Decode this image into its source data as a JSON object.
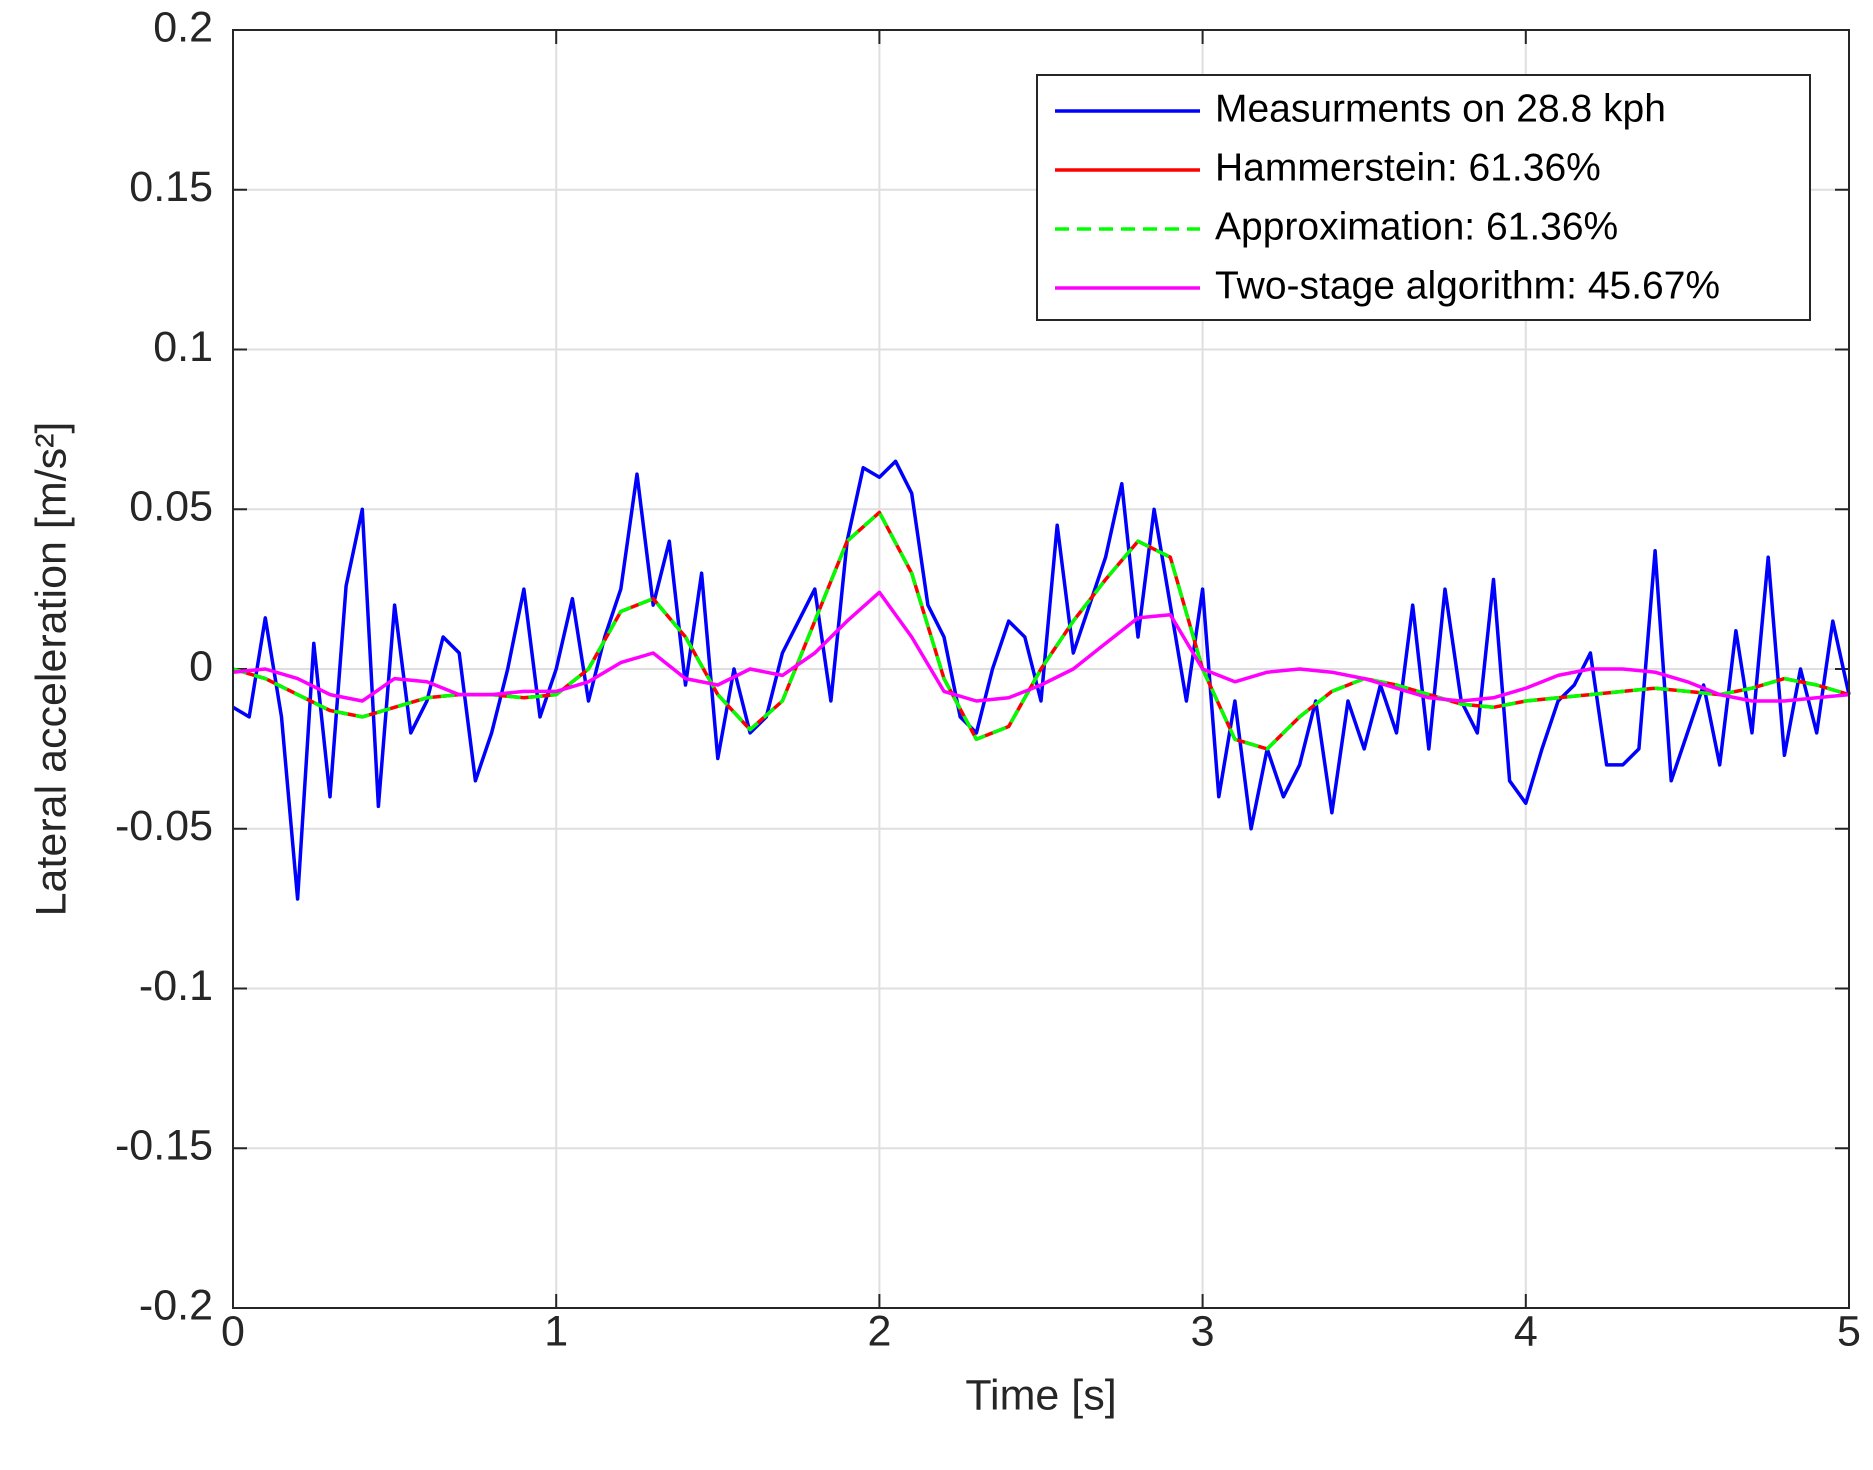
{
  "chart_data": {
    "type": "line",
    "xlabel": "Time [s]",
    "ylabel": "Lateral acceleration [m/s²]",
    "xlim": [
      0,
      5
    ],
    "ylim": [
      -0.2,
      0.2
    ],
    "xticks": [
      0,
      1,
      2,
      3,
      4,
      5
    ],
    "yticks": [
      -0.2,
      -0.15,
      -0.1,
      -0.05,
      0,
      0.05,
      0.1,
      0.15,
      0.2
    ],
    "grid": true,
    "legend": "top-right",
    "series": [
      {
        "name": "Measurments on 28.8 kph",
        "color": "#0000ff",
        "linestyle": "solid",
        "x": [
          0,
          0.05,
          0.1,
          0.15,
          0.2,
          0.25,
          0.3,
          0.35,
          0.4,
          0.45,
          0.5,
          0.55,
          0.6,
          0.65,
          0.7,
          0.75,
          0.8,
          0.85,
          0.9,
          0.95,
          1,
          1.05,
          1.1,
          1.15,
          1.2,
          1.25,
          1.3,
          1.35,
          1.4,
          1.45,
          1.5,
          1.55,
          1.6,
          1.65,
          1.7,
          1.75,
          1.8,
          1.85,
          1.9,
          1.95,
          2,
          2.05,
          2.1,
          2.15,
          2.2,
          2.25,
          2.3,
          2.35,
          2.4,
          2.45,
          2.5,
          2.55,
          2.6,
          2.65,
          2.7,
          2.75,
          2.8,
          2.85,
          2.9,
          2.95,
          3,
          3.05,
          3.1,
          3.15,
          3.2,
          3.25,
          3.3,
          3.35,
          3.4,
          3.45,
          3.5,
          3.55,
          3.6,
          3.65,
          3.7,
          3.75,
          3.8,
          3.85,
          3.9,
          3.95,
          4,
          4.05,
          4.1,
          4.15,
          4.2,
          4.25,
          4.3,
          4.35,
          4.4,
          4.45,
          4.5,
          4.55,
          4.6,
          4.65,
          4.7,
          4.75,
          4.8,
          4.85,
          4.9,
          4.95,
          5
        ],
        "values": [
          -0.012,
          -0.015,
          0.016,
          -0.015,
          -0.072,
          0.008,
          -0.04,
          0.026,
          0.05,
          -0.043,
          0.02,
          -0.02,
          -0.01,
          0.01,
          0.005,
          -0.035,
          -0.02,
          0.0,
          0.025,
          -0.015,
          0.0,
          0.022,
          -0.01,
          0.01,
          0.025,
          0.061,
          0.02,
          0.04,
          -0.005,
          0.03,
          -0.028,
          0.0,
          -0.02,
          -0.015,
          0.005,
          0.015,
          0.025,
          -0.01,
          0.04,
          0.063,
          0.06,
          0.065,
          0.055,
          0.02,
          0.01,
          -0.015,
          -0.02,
          0.0,
          0.015,
          0.01,
          -0.01,
          0.045,
          0.005,
          0.02,
          0.035,
          0.058,
          0.01,
          0.05,
          0.02,
          -0.01,
          0.025,
          -0.04,
          -0.01,
          -0.05,
          -0.025,
          -0.04,
          -0.03,
          -0.01,
          -0.045,
          -0.01,
          -0.025,
          -0.005,
          -0.02,
          0.02,
          -0.025,
          0.025,
          -0.01,
          -0.02,
          0.028,
          -0.035,
          -0.042,
          -0.025,
          -0.01,
          -0.005,
          0.005,
          -0.03,
          -0.03,
          -0.025,
          0.037,
          -0.035,
          -0.02,
          -0.005,
          -0.03,
          0.012,
          -0.02,
          0.035,
          -0.027,
          0.0,
          -0.02,
          0.015,
          -0.008
        ]
      },
      {
        "name": "Hammerstein: 61.36%",
        "color": "#ff0000",
        "linestyle": "solid",
        "x": [
          0,
          0.1,
          0.2,
          0.3,
          0.4,
          0.5,
          0.6,
          0.7,
          0.8,
          0.9,
          1,
          1.1,
          1.2,
          1.3,
          1.4,
          1.5,
          1.6,
          1.7,
          1.8,
          1.9,
          2,
          2.1,
          2.2,
          2.3,
          2.4,
          2.5,
          2.6,
          2.7,
          2.8,
          2.9,
          3,
          3.1,
          3.2,
          3.3,
          3.4,
          3.5,
          3.6,
          3.7,
          3.8,
          3.9,
          4,
          4.1,
          4.2,
          4.3,
          4.4,
          4.5,
          4.6,
          4.7,
          4.8,
          4.9,
          5
        ],
        "values": [
          0.0,
          -0.003,
          -0.008,
          -0.013,
          -0.015,
          -0.012,
          -0.009,
          -0.008,
          -0.008,
          -0.009,
          -0.008,
          0.0,
          0.018,
          0.022,
          0.01,
          -0.008,
          -0.019,
          -0.01,
          0.015,
          0.04,
          0.049,
          0.03,
          -0.003,
          -0.022,
          -0.018,
          0.0,
          0.015,
          0.028,
          0.04,
          0.035,
          0.0,
          -0.022,
          -0.025,
          -0.015,
          -0.007,
          -0.003,
          -0.005,
          -0.008,
          -0.011,
          -0.012,
          -0.01,
          -0.009,
          -0.008,
          -0.007,
          -0.006,
          -0.007,
          -0.008,
          -0.006,
          -0.003,
          -0.005,
          -0.008
        ]
      },
      {
        "name": "Approximation: 61.36%",
        "color": "#00ff00",
        "linestyle": "dashed",
        "x": [
          0,
          0.1,
          0.2,
          0.3,
          0.4,
          0.5,
          0.6,
          0.7,
          0.8,
          0.9,
          1,
          1.1,
          1.2,
          1.3,
          1.4,
          1.5,
          1.6,
          1.7,
          1.8,
          1.9,
          2,
          2.1,
          2.2,
          2.3,
          2.4,
          2.5,
          2.6,
          2.7,
          2.8,
          2.9,
          3,
          3.1,
          3.2,
          3.3,
          3.4,
          3.5,
          3.6,
          3.7,
          3.8,
          3.9,
          4,
          4.1,
          4.2,
          4.3,
          4.4,
          4.5,
          4.6,
          4.7,
          4.8,
          4.9,
          5
        ],
        "values": [
          0.0,
          -0.003,
          -0.008,
          -0.013,
          -0.015,
          -0.012,
          -0.009,
          -0.008,
          -0.008,
          -0.009,
          -0.008,
          0.0,
          0.018,
          0.022,
          0.01,
          -0.008,
          -0.019,
          -0.01,
          0.015,
          0.04,
          0.049,
          0.03,
          -0.003,
          -0.022,
          -0.018,
          0.0,
          0.015,
          0.028,
          0.04,
          0.035,
          0.0,
          -0.022,
          -0.025,
          -0.015,
          -0.007,
          -0.003,
          -0.005,
          -0.008,
          -0.011,
          -0.012,
          -0.01,
          -0.009,
          -0.008,
          -0.007,
          -0.006,
          -0.007,
          -0.008,
          -0.006,
          -0.003,
          -0.005,
          -0.008
        ]
      },
      {
        "name": "Two-stage algorithm: 45.67%",
        "color": "#ff00ff",
        "linestyle": "solid",
        "x": [
          0,
          0.1,
          0.2,
          0.3,
          0.4,
          0.5,
          0.6,
          0.7,
          0.8,
          0.9,
          1,
          1.1,
          1.2,
          1.3,
          1.4,
          1.5,
          1.6,
          1.7,
          1.8,
          1.9,
          2,
          2.1,
          2.2,
          2.3,
          2.4,
          2.5,
          2.6,
          2.7,
          2.8,
          2.9,
          3,
          3.1,
          3.2,
          3.3,
          3.4,
          3.5,
          3.6,
          3.7,
          3.8,
          3.9,
          4,
          4.1,
          4.2,
          4.3,
          4.4,
          4.5,
          4.6,
          4.7,
          4.8,
          4.9,
          5
        ],
        "values": [
          -0.001,
          0.0,
          -0.003,
          -0.008,
          -0.01,
          -0.003,
          -0.004,
          -0.008,
          -0.008,
          -0.007,
          -0.007,
          -0.004,
          0.002,
          0.005,
          -0.003,
          -0.005,
          0.0,
          -0.002,
          0.005,
          0.015,
          0.024,
          0.01,
          -0.007,
          -0.01,
          -0.009,
          -0.005,
          0.0,
          0.008,
          0.016,
          0.017,
          0.0,
          -0.004,
          -0.001,
          0.0,
          -0.001,
          -0.003,
          -0.006,
          -0.009,
          -0.01,
          -0.009,
          -0.006,
          -0.002,
          0.0,
          0.0,
          -0.001,
          -0.004,
          -0.008,
          -0.01,
          -0.01,
          -0.009,
          -0.008
        ]
      }
    ]
  }
}
